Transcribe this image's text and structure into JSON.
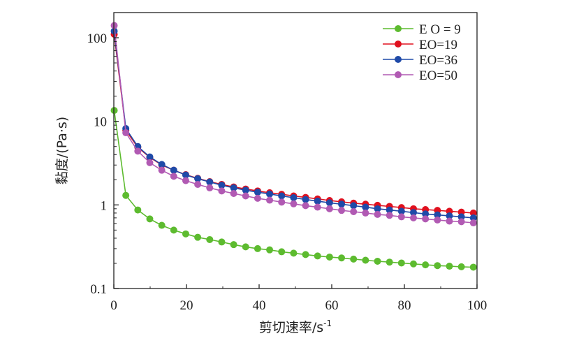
{
  "chart_data": {
    "type": "line",
    "xlabel": "剪切速率/s",
    "xlabel_sup": "-1",
    "ylabel": "黏度/(Pa·s)",
    "xlim": [
      0,
      100
    ],
    "ylim": [
      0.1,
      200
    ],
    "yscale": "log",
    "x_ticks": [
      0,
      20,
      40,
      60,
      80,
      100
    ],
    "x_tick_labels": [
      "0",
      "20",
      "40",
      "60",
      "80",
      "100"
    ],
    "y_ticks": [
      0.1,
      1,
      10,
      100
    ],
    "y_tick_labels": [
      "0.1",
      "1",
      "10",
      "100"
    ],
    "grid": false,
    "legend_position": "top-right",
    "x": [
      0.1,
      3.3,
      6.6,
      9.9,
      13.2,
      16.5,
      19.8,
      23.1,
      26.4,
      29.7,
      33.0,
      36.3,
      39.6,
      42.9,
      46.2,
      49.5,
      52.8,
      56.1,
      59.4,
      62.7,
      66.0,
      69.3,
      72.6,
      75.9,
      79.2,
      82.5,
      85.8,
      89.1,
      92.4,
      95.7,
      99.0
    ],
    "series": [
      {
        "name": "E O = 9",
        "color": "#5dbb2f",
        "values": [
          13.5,
          1.3,
          0.87,
          0.68,
          0.57,
          0.5,
          0.45,
          0.41,
          0.385,
          0.36,
          0.335,
          0.315,
          0.3,
          0.29,
          0.275,
          0.265,
          0.255,
          0.245,
          0.238,
          0.232,
          0.225,
          0.218,
          0.212,
          0.207,
          0.202,
          0.197,
          0.192,
          0.188,
          0.185,
          0.182,
          0.18
        ]
      },
      {
        "name": "EO=19",
        "color": "#e0101e",
        "values": [
          110,
          7.8,
          4.9,
          3.7,
          3.0,
          2.6,
          2.3,
          2.08,
          1.9,
          1.76,
          1.64,
          1.55,
          1.47,
          1.4,
          1.34,
          1.28,
          1.23,
          1.18,
          1.13,
          1.09,
          1.05,
          1.02,
          0.99,
          0.96,
          0.93,
          0.9,
          0.88,
          0.86,
          0.84,
          0.82,
          0.8
        ]
      },
      {
        "name": "EO=36",
        "color": "#1f4aa8",
        "values": [
          120,
          8.2,
          5.0,
          3.75,
          3.05,
          2.6,
          2.28,
          2.06,
          1.88,
          1.72,
          1.6,
          1.5,
          1.42,
          1.35,
          1.28,
          1.22,
          1.16,
          1.11,
          1.06,
          1.02,
          0.98,
          0.94,
          0.9,
          0.87,
          0.84,
          0.81,
          0.78,
          0.76,
          0.74,
          0.72,
          0.7
        ]
      },
      {
        "name": "EO=50",
        "color": "#b15ab3",
        "values": [
          140,
          7.3,
          4.4,
          3.2,
          2.6,
          2.2,
          1.95,
          1.76,
          1.6,
          1.47,
          1.37,
          1.28,
          1.2,
          1.14,
          1.08,
          1.03,
          0.98,
          0.94,
          0.9,
          0.86,
          0.83,
          0.8,
          0.77,
          0.75,
          0.72,
          0.7,
          0.68,
          0.66,
          0.64,
          0.63,
          0.61
        ]
      }
    ]
  }
}
